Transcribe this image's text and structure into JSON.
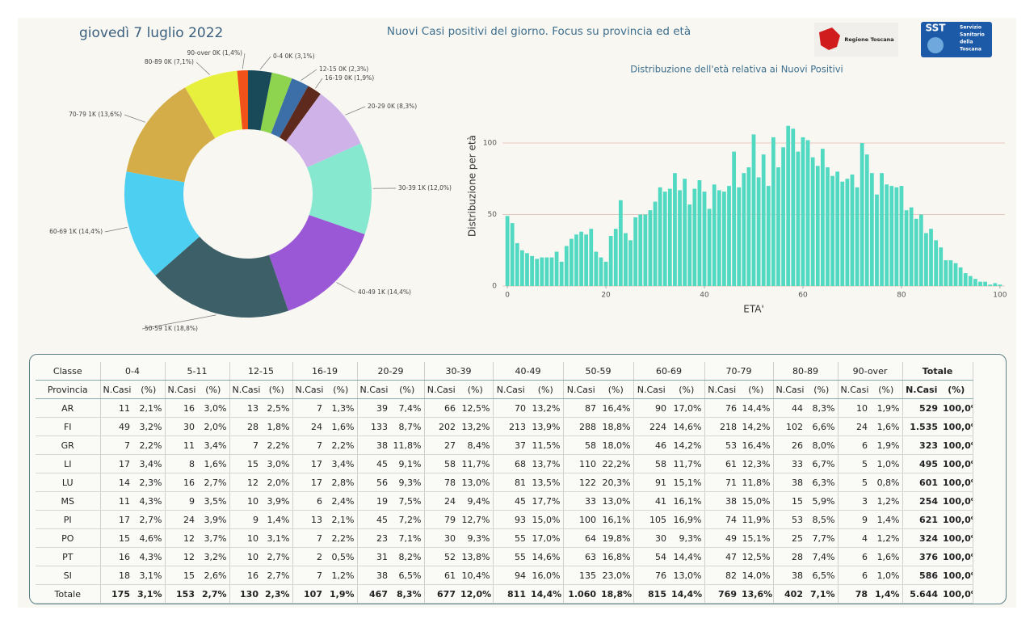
{
  "header": {
    "date": "giovedì 7 luglio 2022",
    "title": "Nuovi Casi positivi del giorno. Focus su provincia ed età",
    "logo_left": "Regione Toscana",
    "logo_right_abbr": "SST",
    "logo_right_lines": [
      "Servizio",
      "Sanitario",
      "della",
      "Toscana"
    ]
  },
  "chart_data": [
    {
      "type": "donut",
      "labels": [
        "0-4 0K (3,1%)",
        null,
        "12-15 0K (2,3%)",
        "16-19 0K (1,9%)",
        "20-29 0K (8,3%)",
        "30-39 1K (12,0%)",
        "40-49 1K (14,4%)",
        "50-59 1K (18,8%)",
        "60-69 1K (14,4%)",
        "70-79 1K (13,6%)",
        "80-89 0K (7,1%)",
        "90-over 0K (1,4%)"
      ],
      "values": [
        3.1,
        2.7,
        2.3,
        1.9,
        8.3,
        12.0,
        14.4,
        18.8,
        14.4,
        13.6,
        7.1,
        1.4
      ],
      "colors": [
        "#184a5a",
        "#8fd44e",
        "#3c6fa8",
        "#5e2a1e",
        "#cfb3e8",
        "#86e8cf",
        "#9b58d6",
        "#3d5f68",
        "#4dcff2",
        "#d4ad48",
        "#e8f03e",
        "#f0521a"
      ]
    },
    {
      "type": "bar",
      "title": "Distribuzione dell'età relativa ai Nuovi Positivi",
      "xlabel": "ETA'",
      "ylabel": "Distribuzione per età",
      "color": "#52d9c2",
      "grid": true,
      "x": [
        0,
        1,
        2,
        3,
        4,
        5,
        6,
        7,
        8,
        9,
        10,
        11,
        12,
        13,
        14,
        15,
        16,
        17,
        18,
        19,
        20,
        21,
        22,
        23,
        24,
        25,
        26,
        27,
        28,
        29,
        30,
        31,
        32,
        33,
        34,
        35,
        36,
        37,
        38,
        39,
        40,
        41,
        42,
        43,
        44,
        45,
        46,
        47,
        48,
        49,
        50,
        51,
        52,
        53,
        54,
        55,
        56,
        57,
        58,
        59,
        60,
        61,
        62,
        63,
        64,
        65,
        66,
        67,
        68,
        69,
        70,
        71,
        72,
        73,
        74,
        75,
        76,
        77,
        78,
        79,
        80,
        81,
        82,
        83,
        84,
        85,
        86,
        87,
        88,
        89,
        90,
        91,
        92,
        93,
        94,
        95,
        96,
        97,
        98,
        99,
        100
      ],
      "values": [
        49,
        44,
        30,
        25,
        23,
        21,
        19,
        20,
        20,
        20,
        24,
        17,
        28,
        33,
        36,
        38,
        36,
        40,
        24,
        20,
        17,
        35,
        40,
        60,
        37,
        32,
        48,
        50,
        50,
        53,
        59,
        69,
        66,
        68,
        79,
        67,
        75,
        57,
        68,
        74,
        66,
        54,
        71,
        67,
        66,
        70,
        94,
        69,
        79,
        83,
        106,
        76,
        92,
        70,
        104,
        83,
        97,
        112,
        110,
        94,
        104,
        102,
        90,
        84,
        96,
        83,
        77,
        80,
        73,
        75,
        78,
        69,
        100,
        92,
        79,
        64,
        79,
        71,
        70,
        69,
        70,
        53,
        55,
        47,
        50,
        37,
        40,
        32,
        27,
        18,
        18,
        16,
        13,
        9,
        7,
        5,
        3,
        3,
        1,
        2,
        1
      ],
      "xlim": [
        -1,
        101
      ],
      "xticks": [
        0,
        20,
        40,
        60,
        80,
        100
      ],
      "ylim": [
        0,
        115
      ],
      "yticks": [
        0,
        50,
        100
      ]
    }
  ],
  "table": {
    "corner": "Classe",
    "groups": [
      "0-4",
      "5-11",
      "12-15",
      "16-19",
      "20-29",
      "30-39",
      "40-49",
      "50-59",
      "60-69",
      "70-79",
      "80-89",
      "90-over",
      "Totale"
    ],
    "subheader": [
      "Provincia",
      "N.Casi",
      "(%)",
      "N.Casi",
      "(%)",
      "N.Casi",
      "(%)",
      "N.Casi",
      "(%)",
      "N.Casi",
      "(%)",
      "N.Casi",
      "(%)",
      "N.Casi",
      "(%)",
      "N.Casi",
      "(%)",
      "N.Casi",
      "(%)",
      "N.Casi",
      "(%)",
      "N.Casi",
      "(%)",
      "N.Casi",
      "(%)",
      "N.Casi",
      "(%)"
    ],
    "rows": [
      [
        "AR",
        "11",
        "2,1%",
        "16",
        "3,0%",
        "13",
        "2,5%",
        "7",
        "1,3%",
        "39",
        "7,4%",
        "66",
        "12,5%",
        "70",
        "13,2%",
        "87",
        "16,4%",
        "90",
        "17,0%",
        "76",
        "14,4%",
        "44",
        "8,3%",
        "10",
        "1,9%",
        "529",
        "100,0%"
      ],
      [
        "FI",
        "49",
        "3,2%",
        "30",
        "2,0%",
        "28",
        "1,8%",
        "24",
        "1,6%",
        "133",
        "8,7%",
        "202",
        "13,2%",
        "213",
        "13,9%",
        "288",
        "18,8%",
        "224",
        "14,6%",
        "218",
        "14,2%",
        "102",
        "6,6%",
        "24",
        "1,6%",
        "1.535",
        "100,0%"
      ],
      [
        "GR",
        "7",
        "2,2%",
        "11",
        "3,4%",
        "7",
        "2,2%",
        "7",
        "2,2%",
        "38",
        "11,8%",
        "27",
        "8,4%",
        "37",
        "11,5%",
        "58",
        "18,0%",
        "46",
        "14,2%",
        "53",
        "16,4%",
        "26",
        "8,0%",
        "6",
        "1,9%",
        "323",
        "100,0%"
      ],
      [
        "LI",
        "17",
        "3,4%",
        "8",
        "1,6%",
        "15",
        "3,0%",
        "17",
        "3,4%",
        "45",
        "9,1%",
        "58",
        "11,7%",
        "68",
        "13,7%",
        "110",
        "22,2%",
        "58",
        "11,7%",
        "61",
        "12,3%",
        "33",
        "6,7%",
        "5",
        "1,0%",
        "495",
        "100,0%"
      ],
      [
        "LU",
        "14",
        "2,3%",
        "16",
        "2,7%",
        "12",
        "2,0%",
        "17",
        "2,8%",
        "56",
        "9,3%",
        "78",
        "13,0%",
        "81",
        "13,5%",
        "122",
        "20,3%",
        "91",
        "15,1%",
        "71",
        "11,8%",
        "38",
        "6,3%",
        "5",
        "0,8%",
        "601",
        "100,0%"
      ],
      [
        "MS",
        "11",
        "4,3%",
        "9",
        "3,5%",
        "10",
        "3,9%",
        "6",
        "2,4%",
        "19",
        "7,5%",
        "24",
        "9,4%",
        "45",
        "17,7%",
        "33",
        "13,0%",
        "41",
        "16,1%",
        "38",
        "15,0%",
        "15",
        "5,9%",
        "3",
        "1,2%",
        "254",
        "100,0%"
      ],
      [
        "PI",
        "17",
        "2,7%",
        "24",
        "3,9%",
        "9",
        "1,4%",
        "13",
        "2,1%",
        "45",
        "7,2%",
        "79",
        "12,7%",
        "93",
        "15,0%",
        "100",
        "16,1%",
        "105",
        "16,9%",
        "74",
        "11,9%",
        "53",
        "8,5%",
        "9",
        "1,4%",
        "621",
        "100,0%"
      ],
      [
        "PO",
        "15",
        "4,6%",
        "12",
        "3,7%",
        "10",
        "3,1%",
        "7",
        "2,2%",
        "23",
        "7,1%",
        "30",
        "9,3%",
        "55",
        "17,0%",
        "64",
        "19,8%",
        "30",
        "9,3%",
        "49",
        "15,1%",
        "25",
        "7,7%",
        "4",
        "1,2%",
        "324",
        "100,0%"
      ],
      [
        "PT",
        "16",
        "4,3%",
        "12",
        "3,2%",
        "10",
        "2,7%",
        "2",
        "0,5%",
        "31",
        "8,2%",
        "52",
        "13,8%",
        "55",
        "14,6%",
        "63",
        "16,8%",
        "54",
        "14,4%",
        "47",
        "12,5%",
        "28",
        "7,4%",
        "6",
        "1,6%",
        "376",
        "100,0%"
      ],
      [
        "SI",
        "18",
        "3,1%",
        "15",
        "2,6%",
        "16",
        "2,7%",
        "7",
        "1,2%",
        "38",
        "6,5%",
        "61",
        "10,4%",
        "94",
        "16,0%",
        "135",
        "23,0%",
        "76",
        "13,0%",
        "82",
        "14,0%",
        "38",
        "6,5%",
        "6",
        "1,0%",
        "586",
        "100,0%"
      ]
    ],
    "total": [
      "Totale",
      "175",
      "3,1%",
      "153",
      "2,7%",
      "130",
      "2,3%",
      "107",
      "1,9%",
      "467",
      "8,3%",
      "677",
      "12,0%",
      "811",
      "14,4%",
      "1.060",
      "18,8%",
      "815",
      "14,4%",
      "769",
      "13,6%",
      "402",
      "7,1%",
      "78",
      "1,4%",
      "5.644",
      "100,0%"
    ]
  }
}
